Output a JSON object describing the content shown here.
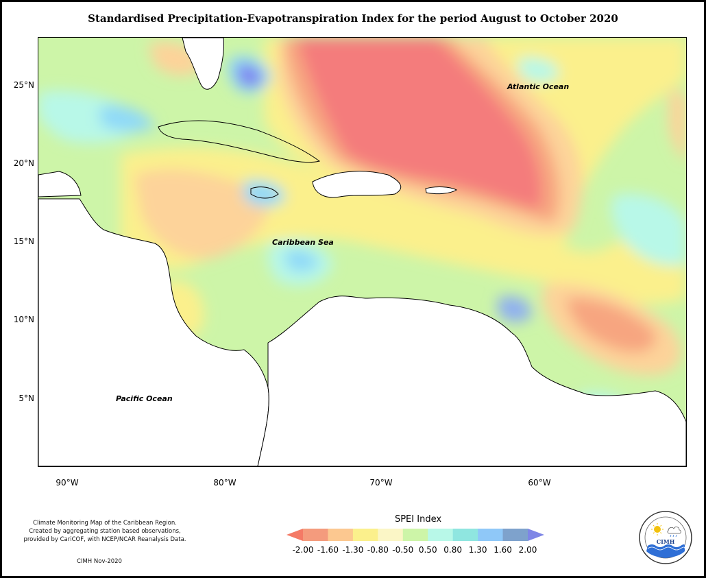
{
  "title": "Standardised Precipitation-Evapotranspiration Index for the period August to October 2020",
  "latitude_labels": [
    {
      "text": "25°N",
      "value": 25
    },
    {
      "text": "20°N",
      "value": 20
    },
    {
      "text": "15°N",
      "value": 15
    },
    {
      "text": "10°N",
      "value": 10
    },
    {
      "text": "5°N",
      "value": 5
    }
  ],
  "longitude_labels": [
    {
      "text": "90°W",
      "value": -90
    },
    {
      "text": "80°W",
      "value": -80
    },
    {
      "text": "70°W",
      "value": -70
    },
    {
      "text": "60°W",
      "value": -60
    }
  ],
  "ocean_labels": {
    "atlantic": "Atlantic Ocean",
    "caribbean": "Caribbean Sea",
    "pacific": "Pacific Ocean"
  },
  "credits": [
    "Climate Monitoring Map of the Caribbean Region.",
    "Created by aggregating station based observations,",
    "provided by CariCOF, with NCEP/NCAR Reanalysis Data."
  ],
  "date_stamp": "CIMH Nov-2020",
  "legend": {
    "title": "SPEI Index",
    "ticks": [
      "-2.00",
      "-1.60",
      "-1.30",
      "-0.80",
      "-0.50",
      "0.50",
      "0.80",
      "1.30",
      "1.60",
      "2.00"
    ],
    "colors": [
      "#f47a66",
      "#f49b7d",
      "#fcc890",
      "#fbf08c",
      "#fbf6c6",
      "#cdf5a8",
      "#b8f8e8",
      "#8fe6e0",
      "#8fc8f8",
      "#7ea2cc",
      "#7e86e6"
    ]
  },
  "logo": {
    "text": "CIMH",
    "icon": "sun-cloud-rain-waves-icon"
  },
  "colors": {
    "dry_extreme": "#f47c7c",
    "dry": "#f7a580",
    "moderately_dry": "#fdd39a",
    "slightly_dry": "#fbf08c",
    "near_normal": "#cdf5a8",
    "slightly_wet": "#b8f8e8",
    "wet": "#8fd9f8",
    "very_wet": "#8fb0f0",
    "extreme_wet": "#8080ee",
    "land": "#ffffff"
  }
}
